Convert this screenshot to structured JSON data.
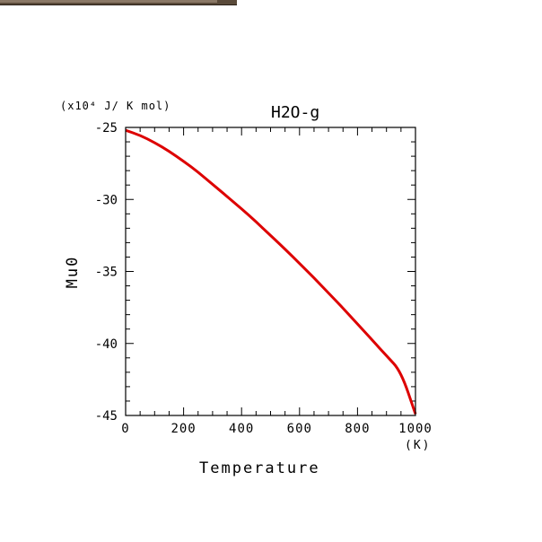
{
  "window": {
    "titlebar": ""
  },
  "chart_data": {
    "type": "line",
    "title": "H2O-g",
    "xlabel": "Temperature",
    "x_unit": "(K)",
    "ylabel": "Mu0",
    "y_unit": "(x10⁴ J/ K mol)",
    "xlim": [
      0,
      1000
    ],
    "ylim": [
      -45,
      -25
    ],
    "x_ticks": [
      0,
      200,
      400,
      600,
      800,
      1000
    ],
    "x_tick_labels": [
      "0",
      "200",
      "400",
      "600",
      "800",
      "1000"
    ],
    "y_ticks": [
      -25,
      -30,
      -35,
      -40,
      -45
    ],
    "y_tick_labels": [
      "-25",
      "-30",
      "-35",
      "-40",
      "-45"
    ],
    "grid": false,
    "series": [
      {
        "color": "#dd0000",
        "x": [
          0,
          50,
          100,
          150,
          200,
          250,
          300,
          350,
          400,
          450,
          500,
          550,
          600,
          650,
          700,
          750,
          800,
          850,
          900,
          950,
          1000
        ],
        "y": [
          -25.2,
          -25.55,
          -26.05,
          -26.65,
          -27.35,
          -28.1,
          -28.95,
          -29.8,
          -30.65,
          -31.55,
          -32.5,
          -33.45,
          -34.45,
          -35.45,
          -36.5,
          -37.55,
          -38.65,
          -39.75,
          -40.85,
          -41.95,
          -44.9
        ]
      }
    ]
  }
}
